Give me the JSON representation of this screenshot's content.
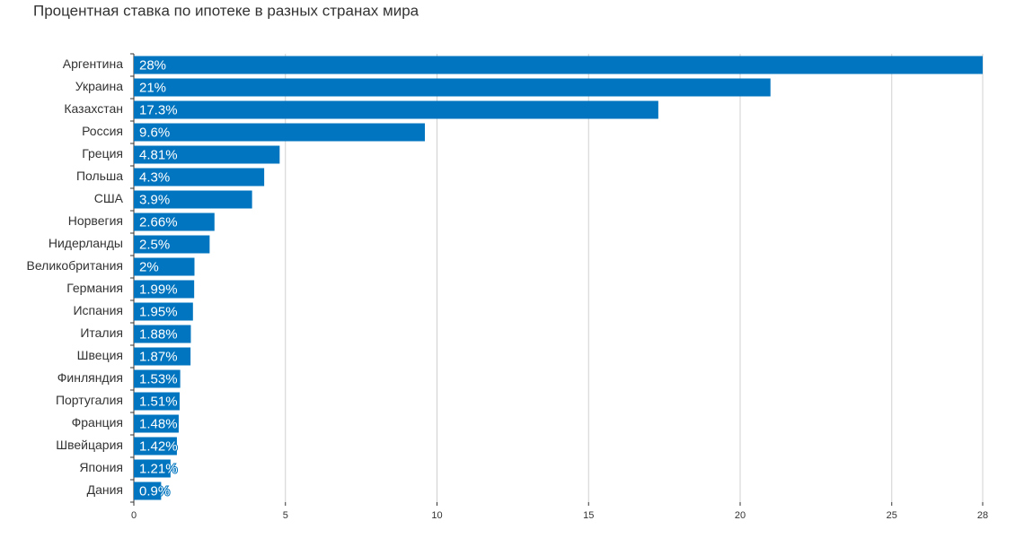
{
  "chart_data": {
    "type": "bar",
    "orientation": "horizontal",
    "title": "Процентная ставка по ипотеке в разных странах мира",
    "categories": [
      "Аргентина",
      "Украина",
      "Казахстан",
      "Россия",
      "Греция",
      "Польша",
      "США",
      "Норвегия",
      "Нидерланды",
      "Великобритания",
      "Германия",
      "Испания",
      "Италия",
      "Швеция",
      "Финляндия",
      "Португалия",
      "Франция",
      "Швейцария",
      "Япония",
      "Дания"
    ],
    "values": [
      28,
      21,
      17.3,
      9.6,
      4.81,
      4.3,
      3.9,
      2.66,
      2.5,
      2,
      1.99,
      1.95,
      1.88,
      1.87,
      1.53,
      1.51,
      1.48,
      1.42,
      1.21,
      0.9
    ],
    "value_labels": [
      "28%",
      "21%",
      "17.3%",
      "9.6%",
      "4.81%",
      "4.3%",
      "3.9%",
      "2.66%",
      "2.5%",
      "2%",
      "1.99%",
      "1.95%",
      "1.88%",
      "1.87%",
      "1.53%",
      "1.51%",
      "1.48%",
      "1.42%",
      "1.21%",
      "0.9%"
    ],
    "color": "#0175bf",
    "xlim": [
      0,
      28
    ],
    "xticks": [
      0,
      5,
      10,
      15,
      20,
      25,
      28
    ],
    "grid": true
  }
}
